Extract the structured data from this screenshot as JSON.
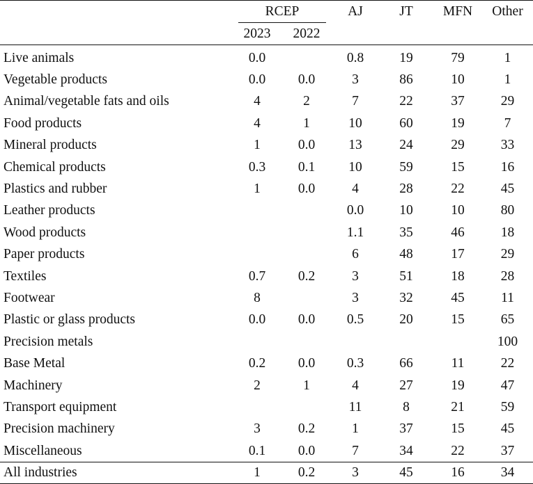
{
  "header": {
    "rcep": "RCEP",
    "year_2023": "2023",
    "year_2022": "2022",
    "aj": "AJ",
    "jt": "JT",
    "mfn": "MFN",
    "other": "Other"
  },
  "rows": [
    {
      "label": "Live animals",
      "rcep2023": "0.0",
      "rcep2022": "",
      "aj": "0.8",
      "jt": "19",
      "mfn": "79",
      "other": "1"
    },
    {
      "label": "Vegetable products",
      "rcep2023": "0.0",
      "rcep2022": "0.0",
      "aj": "3",
      "jt": "86",
      "mfn": "10",
      "other": "1"
    },
    {
      "label": "Animal/vegetable fats and oils",
      "rcep2023": "4",
      "rcep2022": "2",
      "aj": "7",
      "jt": "22",
      "mfn": "37",
      "other": "29"
    },
    {
      "label": "Food products",
      "rcep2023": "4",
      "rcep2022": "1",
      "aj": "10",
      "jt": "60",
      "mfn": "19",
      "other": "7"
    },
    {
      "label": "Mineral products",
      "rcep2023": "1",
      "rcep2022": "0.0",
      "aj": "13",
      "jt": "24",
      "mfn": "29",
      "other": "33"
    },
    {
      "label": "Chemical products",
      "rcep2023": "0.3",
      "rcep2022": "0.1",
      "aj": "10",
      "jt": "59",
      "mfn": "15",
      "other": "16"
    },
    {
      "label": "Plastics and rubber",
      "rcep2023": "1",
      "rcep2022": "0.0",
      "aj": "4",
      "jt": "28",
      "mfn": "22",
      "other": "45"
    },
    {
      "label": "Leather products",
      "rcep2023": "",
      "rcep2022": "",
      "aj": "0.0",
      "jt": "10",
      "mfn": "10",
      "other": "80"
    },
    {
      "label": "Wood products",
      "rcep2023": "",
      "rcep2022": "",
      "aj": "1.1",
      "jt": "35",
      "mfn": "46",
      "other": "18"
    },
    {
      "label": "Paper products",
      "rcep2023": "",
      "rcep2022": "",
      "aj": "6",
      "jt": "48",
      "mfn": "17",
      "other": "29"
    },
    {
      "label": "Textiles",
      "rcep2023": "0.7",
      "rcep2022": "0.2",
      "aj": "3",
      "jt": "51",
      "mfn": "18",
      "other": "28"
    },
    {
      "label": "Footwear",
      "rcep2023": "8",
      "rcep2022": "",
      "aj": "3",
      "jt": "32",
      "mfn": "45",
      "other": "11"
    },
    {
      "label": "Plastic or glass products",
      "rcep2023": "0.0",
      "rcep2022": "0.0",
      "aj": "0.5",
      "jt": "20",
      "mfn": "15",
      "other": "65"
    },
    {
      "label": "Precision metals",
      "rcep2023": "",
      "rcep2022": "",
      "aj": "",
      "jt": "",
      "mfn": "",
      "other": "100"
    },
    {
      "label": "Base Metal",
      "rcep2023": "0.2",
      "rcep2022": "0.0",
      "aj": "0.3",
      "jt": "66",
      "mfn": "11",
      "other": "22"
    },
    {
      "label": "Machinery",
      "rcep2023": "2",
      "rcep2022": "1",
      "aj": "4",
      "jt": "27",
      "mfn": "19",
      "other": "47"
    },
    {
      "label": "Transport equipment",
      "rcep2023": "",
      "rcep2022": "",
      "aj": "11",
      "jt": "8",
      "mfn": "21",
      "other": "59"
    },
    {
      "label": "Precision machinery",
      "rcep2023": "3",
      "rcep2022": "0.2",
      "aj": "1",
      "jt": "37",
      "mfn": "15",
      "other": "45"
    },
    {
      "label": "Miscellaneous",
      "rcep2023": "0.1",
      "rcep2022": "0.0",
      "aj": "7",
      "jt": "34",
      "mfn": "22",
      "other": "37"
    }
  ],
  "total": {
    "label": "All industries",
    "rcep2023": "1",
    "rcep2022": "0.2",
    "aj": "3",
    "jt": "45",
    "mfn": "16",
    "other": "34"
  }
}
